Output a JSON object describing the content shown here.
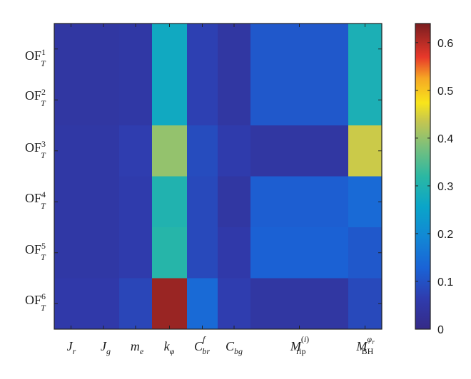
{
  "chart_data": {
    "type": "heatmap",
    "title": "",
    "xlabel": "",
    "ylabel": "",
    "rows": [
      "OF_T^1",
      "OF_T^2",
      "OF_T^3",
      "OF_T^4",
      "OF_T^5",
      "OF_T^6"
    ],
    "columns": [
      "J_r",
      "J_g",
      "m_e",
      "k_φ",
      "C_br^f",
      "C_bg",
      "M_rip^(i)",
      "M_BH^φr"
    ],
    "values": [
      [
        0.045,
        0.045,
        0.05,
        0.27,
        0.07,
        0.045,
        0.11,
        0.29
      ],
      [
        0.045,
        0.045,
        0.05,
        0.27,
        0.07,
        0.045,
        0.11,
        0.29
      ],
      [
        0.05,
        0.05,
        0.065,
        0.4,
        0.09,
        0.06,
        0.045,
        0.44
      ],
      [
        0.05,
        0.05,
        0.06,
        0.3,
        0.085,
        0.045,
        0.12,
        0.14
      ],
      [
        0.05,
        0.05,
        0.06,
        0.31,
        0.085,
        0.055,
        0.125,
        0.11
      ],
      [
        0.055,
        0.055,
        0.08,
        0.62,
        0.14,
        0.065,
        0.045,
        0.085
      ]
    ],
    "colorbar": {
      "range": [
        0,
        0.64
      ],
      "ticks": [
        "0",
        "0.1",
        "0.2",
        "0.3",
        "0.4",
        "0.5",
        "0.6"
      ],
      "tick_values": [
        0,
        0.1,
        0.2,
        0.3,
        0.4,
        0.5,
        0.6
      ],
      "colormap": "parula"
    },
    "grid": false,
    "legend": "none"
  }
}
